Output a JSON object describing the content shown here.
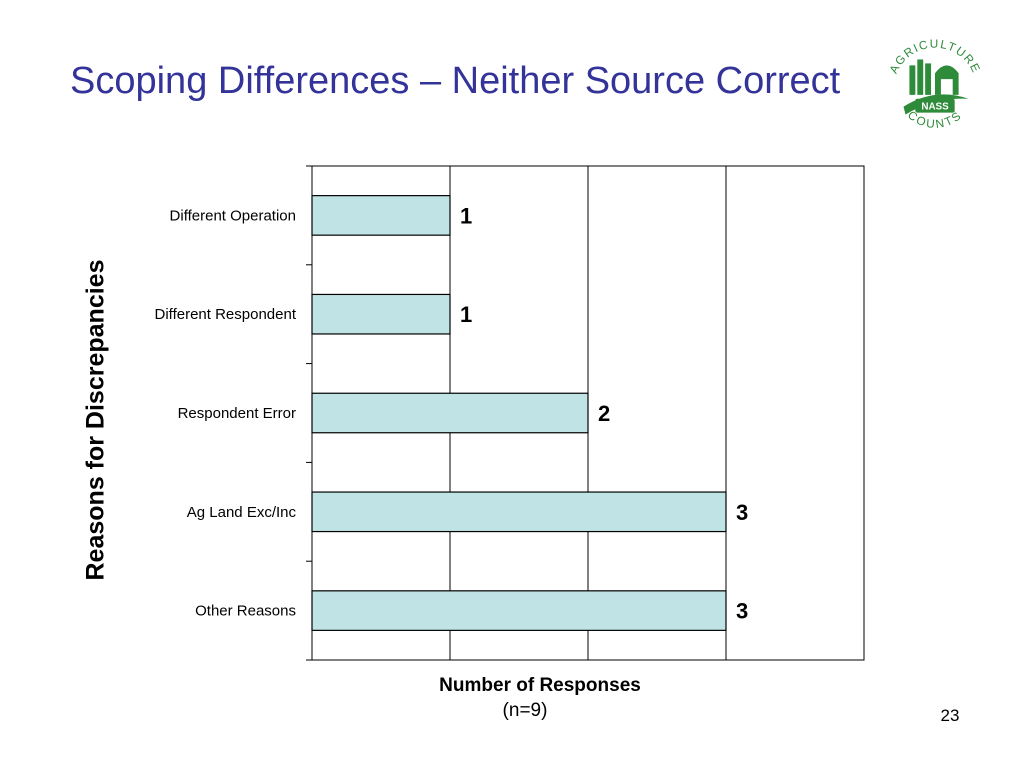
{
  "slide": {
    "title": "Scoping Differences – Neither Source Correct",
    "page_number": "23"
  },
  "logo": {
    "icon": "agriculture-counts-nass-logo",
    "top_text": "AGRICULTURE",
    "bottom_text": "COUNTS",
    "badge_text": "NASS",
    "color": "#2e8b3a"
  },
  "chart_data": {
    "type": "bar",
    "orientation": "horizontal",
    "categories": [
      "Different Operation",
      "Different Respondent",
      "Respondent Error",
      "Ag Land Exc/Inc",
      "Other Reasons"
    ],
    "values": [
      1,
      1,
      2,
      3,
      3
    ],
    "data_labels": [
      "1",
      "1",
      "2",
      "3",
      "3"
    ],
    "xlabel": "Number of Responses",
    "xlabel_note": "(n=9)",
    "ylabel": "Reasons for Discrepancies",
    "xlim": [
      0,
      4
    ],
    "grid": "vertical",
    "bar_color": "#c0e4e6",
    "bar_edge_color": "#000000"
  }
}
